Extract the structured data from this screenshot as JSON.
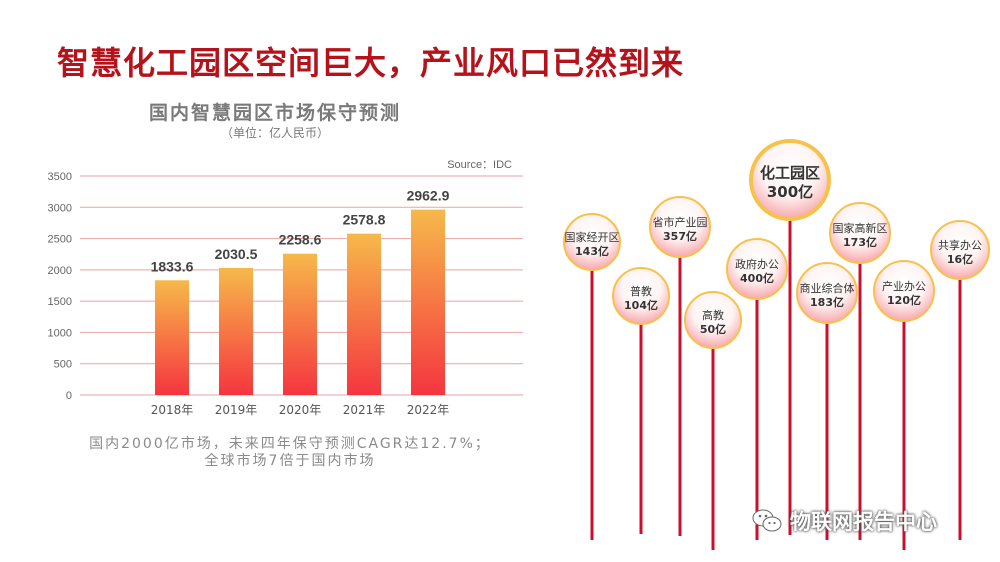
{
  "slide": {
    "title": "智慧化工园区空间巨大，产业风口已然到来"
  },
  "chart_data": {
    "type": "bar",
    "title": "国内智慧园区市场保守预测",
    "subtitle": "（单位：亿人民币）",
    "source": "Source：IDC",
    "categories": [
      "2018年",
      "2019年",
      "2020年",
      "2021年",
      "2022年"
    ],
    "values": [
      1833.6,
      2030.5,
      2258.6,
      2578.8,
      2962.9
    ],
    "value_labels": [
      "1833.6",
      "2030.5",
      "2258.6",
      "2578.8",
      "2962.9"
    ],
    "ylim": [
      0,
      3500
    ],
    "yticks": [
      "0",
      "500",
      "1000",
      "1500",
      "2000",
      "2500",
      "3000",
      "3500"
    ],
    "xlabel": "",
    "ylabel": "",
    "grid": true,
    "colors": {
      "bar_top": "#f6b94a",
      "bar_bottom": "#f5353f",
      "grid": "#e9a3a3"
    }
  },
  "note": {
    "line1": "国内2000亿市场，未来四年保守预测CAGR达12.7%；",
    "line2": "全球市场7倍于国内市场"
  },
  "segments": [
    {
      "name": "国家经开区",
      "value": "143亿"
    },
    {
      "name": "普教",
      "value": "104亿"
    },
    {
      "name": "省市产业园",
      "value": "357亿"
    },
    {
      "name": "高教",
      "value": "50亿"
    },
    {
      "name": "政府办公",
      "value": "400亿"
    },
    {
      "name": "化工园区",
      "value": "300亿"
    },
    {
      "name": "商业综合体",
      "value": "183亿"
    },
    {
      "name": "国家高新区",
      "value": "173亿"
    },
    {
      "name": "产业办公",
      "value": "120亿"
    },
    {
      "name": "共享办公",
      "value": "16亿"
    }
  ],
  "watermark": {
    "text": "物联网报告中心",
    "icon": "wechat-icon"
  },
  "colors": {
    "title": "#b5121b",
    "stick": "#c8102e",
    "bubble_ring": "#f6c24a",
    "bubble_text": "#333333"
  }
}
